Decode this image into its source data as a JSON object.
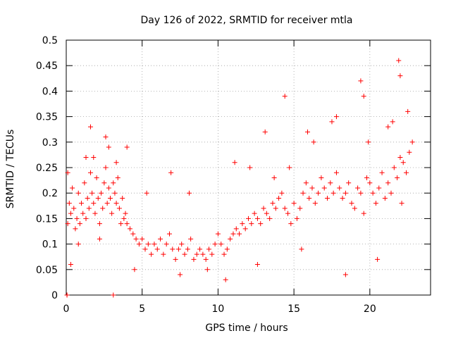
{
  "chart_data": {
    "type": "scatter",
    "title": "Day 126 of 2022, SRMTID for receiver mtla",
    "xlabel": "GPS time / hours",
    "ylabel": "SRMTID / TECUs",
    "xlim": [
      0,
      24
    ],
    "ylim": [
      0,
      0.5
    ],
    "xticks": [
      "0",
      "5",
      "10",
      "15",
      "20"
    ],
    "yticks": [
      "0",
      "0.05",
      "0.1",
      "0.15",
      "0.2",
      "0.25",
      "0.3",
      "0.35",
      "0.4",
      "0.45",
      "0.5"
    ],
    "grid": true,
    "marker": "plus",
    "color": "#ff0000",
    "series": [
      {
        "x": [
          0.05,
          0.1,
          0.2,
          0.3,
          0.4,
          0.5,
          0.6,
          0.7,
          0.8,
          0.9,
          1.0,
          1.1,
          1.2,
          1.3,
          1.4,
          1.5,
          1.6,
          1.7,
          1.8,
          1.9,
          2.0,
          2.1,
          2.2,
          2.3,
          2.4,
          2.5,
          2.6,
          2.7,
          2.8,
          2.9,
          3.0,
          3.1,
          3.2,
          3.3,
          3.4,
          3.5,
          3.6,
          3.7,
          3.8,
          3.9,
          4.0,
          4.2,
          4.4,
          4.6,
          4.8,
          5.0,
          5.2,
          5.4,
          5.6,
          5.8,
          6.0,
          6.2,
          6.4,
          6.6,
          6.8,
          7.0,
          7.2,
          7.4,
          7.6,
          7.8,
          8.0,
          8.2,
          8.4,
          8.6,
          8.8,
          9.0,
          9.2,
          9.4,
          9.6,
          9.8,
          10.0,
          10.2,
          10.4,
          10.6,
          10.8,
          11.0,
          11.2,
          11.4,
          11.6,
          11.8,
          12.0,
          12.2,
          12.4,
          12.6,
          12.8,
          13.0,
          13.2,
          13.4,
          13.6,
          13.8,
          14.0,
          14.2,
          14.4,
          14.6,
          14.8,
          15.0,
          15.2,
          15.4,
          15.6,
          15.8,
          16.0,
          16.2,
          16.4,
          16.6,
          16.8,
          17.0,
          17.2,
          17.4,
          17.6,
          17.8,
          18.0,
          18.2,
          18.4,
          18.6,
          18.8,
          19.0,
          19.2,
          19.4,
          19.6,
          19.8,
          20.0,
          20.2,
          20.4,
          20.6,
          20.8,
          21.0,
          21.2,
          21.4,
          21.6,
          21.8,
          22.0,
          22.2,
          22.4,
          22.6,
          22.8,
          0.05,
          3.1,
          1.6,
          2.6,
          4.0,
          14.4,
          19.4,
          21.9,
          22.0,
          0.3,
          1.8,
          3.3,
          6.9,
          12.1,
          13.7,
          14.7,
          16.3,
          17.5,
          19.6,
          21.2,
          22.5,
          0.8,
          2.2,
          4.5,
          7.5,
          10.5,
          12.6,
          15.5,
          18.4,
          20.5,
          22.1,
          0.1,
          1.3,
          2.8,
          5.3,
          8.1,
          9.3,
          11.1,
          13.1,
          15.9,
          17.8,
          19.9,
          21.5
        ],
        "y": [
          0.0,
          0.14,
          0.18,
          0.16,
          0.21,
          0.17,
          0.13,
          0.15,
          0.2,
          0.14,
          0.18,
          0.16,
          0.22,
          0.15,
          0.19,
          0.17,
          0.24,
          0.2,
          0.18,
          0.16,
          0.23,
          0.19,
          0.14,
          0.2,
          0.17,
          0.22,
          0.25,
          0.18,
          0.21,
          0.19,
          0.16,
          0.22,
          0.2,
          0.18,
          0.23,
          0.17,
          0.14,
          0.19,
          0.15,
          0.16,
          0.14,
          0.13,
          0.12,
          0.11,
          0.1,
          0.11,
          0.09,
          0.1,
          0.08,
          0.1,
          0.09,
          0.11,
          0.08,
          0.1,
          0.12,
          0.09,
          0.07,
          0.09,
          0.1,
          0.08,
          0.09,
          0.11,
          0.07,
          0.08,
          0.09,
          0.08,
          0.07,
          0.09,
          0.08,
          0.1,
          0.12,
          0.1,
          0.08,
          0.09,
          0.11,
          0.12,
          0.13,
          0.12,
          0.14,
          0.13,
          0.15,
          0.14,
          0.16,
          0.15,
          0.14,
          0.17,
          0.16,
          0.15,
          0.18,
          0.17,
          0.19,
          0.2,
          0.17,
          0.16,
          0.14,
          0.18,
          0.15,
          0.17,
          0.2,
          0.22,
          0.19,
          0.21,
          0.18,
          0.2,
          0.23,
          0.21,
          0.19,
          0.22,
          0.2,
          0.24,
          0.21,
          0.19,
          0.2,
          0.22,
          0.18,
          0.17,
          0.21,
          0.2,
          0.16,
          0.23,
          0.22,
          0.2,
          0.18,
          0.21,
          0.24,
          0.19,
          0.22,
          0.2,
          0.25,
          0.23,
          0.27,
          0.26,
          0.24,
          0.28,
          0.3,
          0.0,
          0.0,
          0.33,
          0.31,
          0.29,
          0.39,
          0.42,
          0.46,
          0.43,
          0.06,
          0.27,
          0.26,
          0.24,
          0.25,
          0.23,
          0.25,
          0.3,
          0.34,
          0.39,
          0.33,
          0.36,
          0.1,
          0.11,
          0.05,
          0.04,
          0.03,
          0.06,
          0.09,
          0.04,
          0.07,
          0.18,
          0.24,
          0.27,
          0.29,
          0.2,
          0.2,
          0.05,
          0.26,
          0.32,
          0.32,
          0.35,
          0.3,
          0.34
        ]
      }
    ]
  }
}
